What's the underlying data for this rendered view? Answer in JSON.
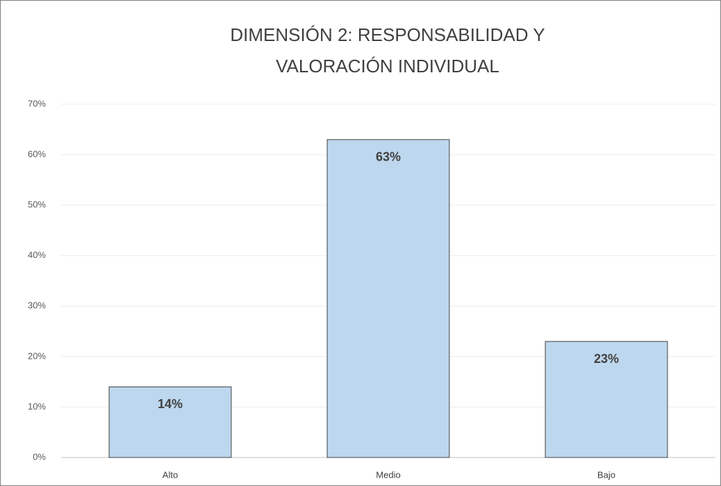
{
  "chart_data": {
    "type": "bar",
    "title": [
      "DIMENSIÓN 2: RESPONSABILIDAD Y",
      "VALORACIÓN INDIVIDUAL"
    ],
    "categories": [
      "Alto",
      "Medio",
      "Bajo"
    ],
    "values": [
      14,
      63,
      23
    ],
    "value_labels": [
      "14%",
      "63%",
      "23%"
    ],
    "color": "#bdd7ee",
    "ylim": [
      0,
      70
    ],
    "yticks": [
      {
        "value": 0,
        "label": "0%"
      },
      {
        "value": 10,
        "label": "10%"
      },
      {
        "value": 20,
        "label": "20%"
      },
      {
        "value": 30,
        "label": "30%"
      },
      {
        "value": 40,
        "label": "40%"
      },
      {
        "value": 50,
        "label": "50%"
      },
      {
        "value": 60,
        "label": "60%"
      },
      {
        "value": 70,
        "label": "70%"
      }
    ],
    "grid": true
  }
}
